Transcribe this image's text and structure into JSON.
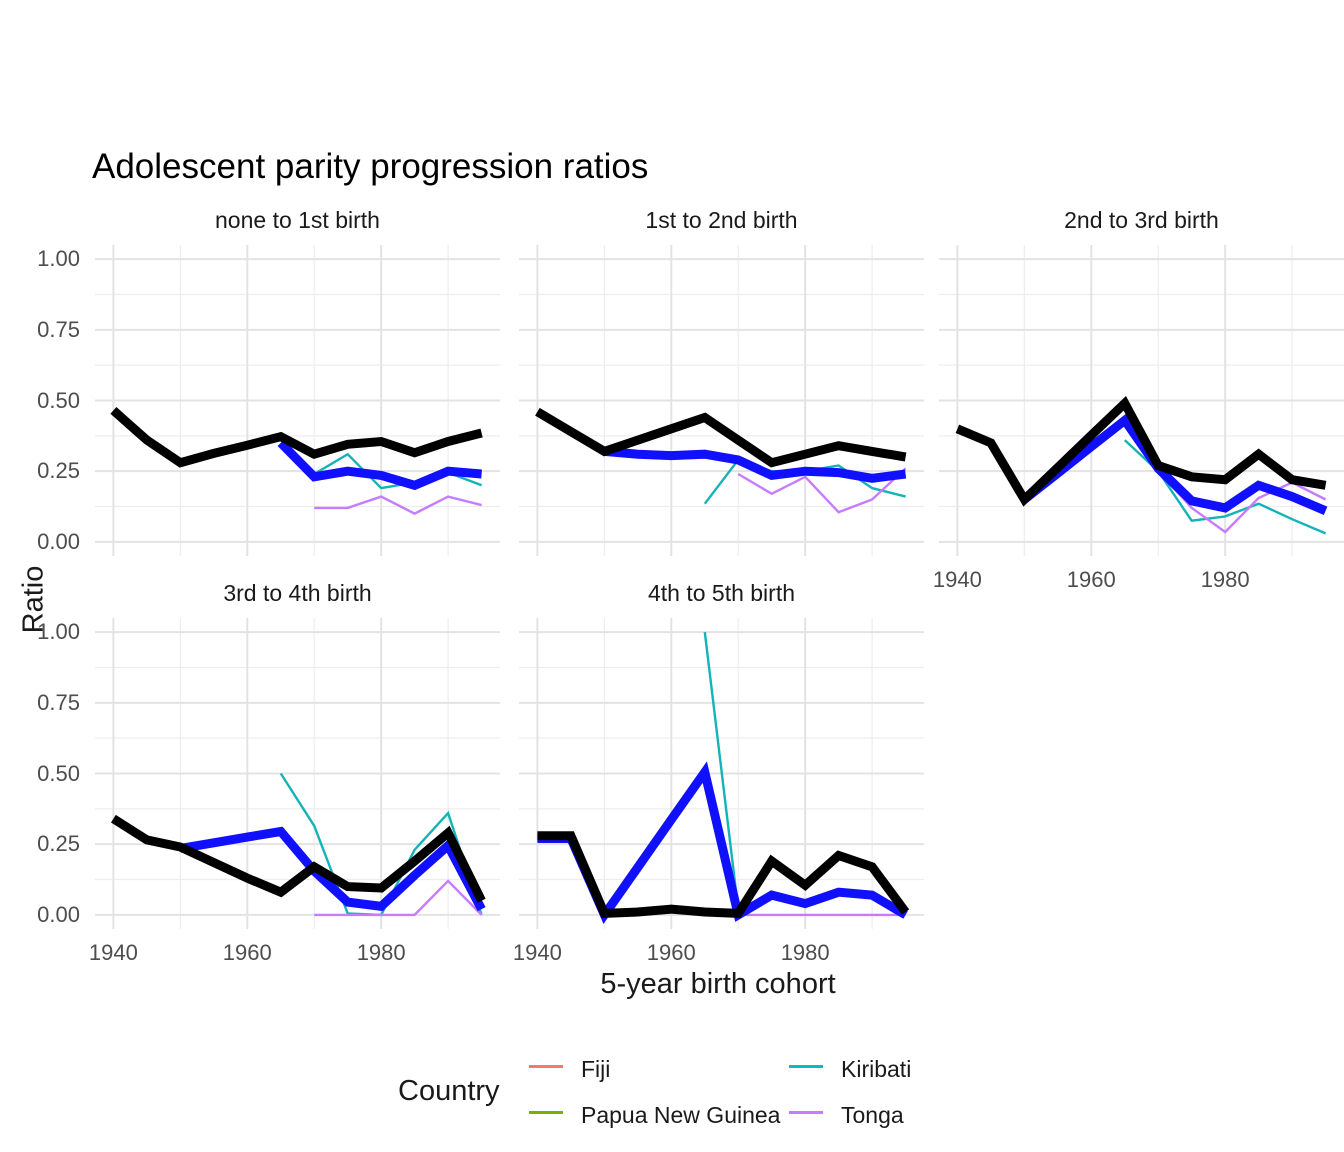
{
  "title": "Adolescent parity progression ratios",
  "ylabel": "Ratio",
  "xlabel": "5-year birth cohort",
  "legend": {
    "title": "Country",
    "items": [
      {
        "label": "Fiji",
        "color": "#F8766D"
      },
      {
        "label": "Papua New Guinea",
        "color": "#7CAE00"
      },
      {
        "label": "Kiribati",
        "color": "#00BFC4"
      },
      {
        "label": "Tonga",
        "color": "#C77CFF"
      }
    ]
  },
  "axes": {
    "y_tick_labels": [
      "1.00",
      "0.75",
      "0.50",
      "0.25",
      "0.00"
    ],
    "y_tick_values": [
      1.0,
      0.75,
      0.5,
      0.25,
      0.0
    ],
    "y_minor_values": [
      0.875,
      0.625,
      0.375,
      0.125
    ],
    "x_tick_labels": [
      "1940",
      "1960",
      "1980"
    ],
    "x_tick_values": [
      1940,
      1960,
      1980
    ],
    "x_minor_values": [
      1950,
      1970,
      1990
    ],
    "x_range": [
      1937.25,
      1997.75
    ],
    "y_range": [
      -0.05,
      1.05
    ],
    "grid_major_color": "#e3e3e3",
    "grid_minor_color": "#ededed"
  },
  "chart_data": {
    "type": "line",
    "x_unit": "5-year birth cohort (year)",
    "y_unit": "parity progression ratio",
    "grid": "on",
    "legend_position": "bottom",
    "facets": [
      {
        "label": "none to 1st birth",
        "series": [
          {
            "name": "Kiribati",
            "color": "#14B3B8",
            "width": 2.4,
            "points": [
              [
                1965,
                0.35
              ],
              [
                1970,
                0.24
              ],
              [
                1975,
                0.31
              ],
              [
                1980,
                0.19
              ],
              [
                1985,
                0.21
              ],
              [
                1990,
                0.245
              ],
              [
                1995,
                0.2
              ]
            ]
          },
          {
            "name": "Tonga",
            "color": "#C77CFF",
            "width": 2.4,
            "points": [
              [
                1970,
                0.12
              ],
              [
                1975,
                0.12
              ],
              [
                1980,
                0.16
              ],
              [
                1985,
                0.1
              ],
              [
                1990,
                0.16
              ],
              [
                1995,
                0.13
              ]
            ]
          },
          {
            "name": "blue thick (unlabeled)",
            "color": "#1010FF",
            "width": 9,
            "points": [
              [
                1965,
                0.35
              ],
              [
                1970,
                0.23
              ],
              [
                1975,
                0.25
              ],
              [
                1980,
                0.235
              ],
              [
                1985,
                0.2
              ],
              [
                1990,
                0.25
              ],
              [
                1995,
                0.24
              ]
            ]
          },
          {
            "name": "black thick (unlabeled)",
            "color": "#000000",
            "width": 9,
            "points": [
              [
                1940,
                0.465
              ],
              [
                1945,
                0.36
              ],
              [
                1950,
                0.28
              ],
              [
                1955,
                0.313
              ],
              [
                1960,
                0.342
              ],
              [
                1965,
                0.372
              ],
              [
                1970,
                0.31
              ],
              [
                1975,
                0.345
              ],
              [
                1980,
                0.355
              ],
              [
                1985,
                0.315
              ],
              [
                1990,
                0.355
              ],
              [
                1995,
                0.385
              ]
            ]
          }
        ]
      },
      {
        "label": "1st to 2nd birth",
        "series": [
          {
            "name": "Kiribati",
            "color": "#14B3B8",
            "width": 2.4,
            "points": [
              [
                1965,
                0.135
              ],
              [
                1970,
                0.29
              ],
              [
                1975,
                0.25
              ],
              [
                1980,
                0.25
              ],
              [
                1985,
                0.27
              ],
              [
                1990,
                0.19
              ],
              [
                1995,
                0.16
              ]
            ]
          },
          {
            "name": "Tonga",
            "color": "#C77CFF",
            "width": 2.4,
            "points": [
              [
                1970,
                0.24
              ],
              [
                1975,
                0.17
              ],
              [
                1980,
                0.23
              ],
              [
                1985,
                0.105
              ],
              [
                1990,
                0.15
              ],
              [
                1995,
                0.26
              ]
            ]
          },
          {
            "name": "blue thick (unlabeled)",
            "color": "#1010FF",
            "width": 9,
            "points": [
              [
                1950,
                0.32
              ],
              [
                1955,
                0.31
              ],
              [
                1960,
                0.305
              ],
              [
                1965,
                0.31
              ],
              [
                1970,
                0.29
              ],
              [
                1975,
                0.235
              ],
              [
                1980,
                0.25
              ],
              [
                1985,
                0.245
              ],
              [
                1990,
                0.225
              ],
              [
                1995,
                0.24
              ]
            ]
          },
          {
            "name": "black thick (unlabeled)",
            "color": "#000000",
            "width": 9,
            "points": [
              [
                1940,
                0.46
              ],
              [
                1945,
                0.39
              ],
              [
                1950,
                0.32
              ],
              [
                1955,
                0.36
              ],
              [
                1960,
                0.4
              ],
              [
                1965,
                0.44
              ],
              [
                1970,
                0.36
              ],
              [
                1975,
                0.28
              ],
              [
                1980,
                0.31
              ],
              [
                1985,
                0.34
              ],
              [
                1990,
                0.32
              ],
              [
                1995,
                0.3
              ]
            ]
          }
        ]
      },
      {
        "label": "2nd to 3rd birth",
        "series": [
          {
            "name": "Kiribati",
            "color": "#14B3B8",
            "width": 2.4,
            "points": [
              [
                1965,
                0.36
              ],
              [
                1970,
                0.25
              ],
              [
                1975,
                0.075
              ],
              [
                1980,
                0.09
              ],
              [
                1985,
                0.135
              ],
              [
                1990,
                0.08
              ],
              [
                1995,
                0.03
              ]
            ]
          },
          {
            "name": "Tonga",
            "color": "#C77CFF",
            "width": 2.4,
            "points": [
              [
                1970,
                0.25
              ],
              [
                1975,
                0.12
              ],
              [
                1980,
                0.035
              ],
              [
                1985,
                0.155
              ],
              [
                1990,
                0.21
              ],
              [
                1995,
                0.15
              ]
            ]
          },
          {
            "name": "blue thick (unlabeled)",
            "color": "#1010FF",
            "width": 9,
            "points": [
              [
                1950,
                0.15
              ],
              [
                1955,
                0.243
              ],
              [
                1960,
                0.337
              ],
              [
                1965,
                0.43
              ],
              [
                1970,
                0.26
              ],
              [
                1975,
                0.145
              ],
              [
                1980,
                0.12
              ],
              [
                1985,
                0.2
              ],
              [
                1990,
                0.16
              ],
              [
                1995,
                0.11
              ]
            ]
          },
          {
            "name": "black thick (unlabeled)",
            "color": "#000000",
            "width": 9,
            "points": [
              [
                1940,
                0.4
              ],
              [
                1945,
                0.35
              ],
              [
                1950,
                0.15
              ],
              [
                1955,
                0.263
              ],
              [
                1960,
                0.377
              ],
              [
                1965,
                0.49
              ],
              [
                1970,
                0.27
              ],
              [
                1975,
                0.23
              ],
              [
                1980,
                0.22
              ],
              [
                1985,
                0.31
              ],
              [
                1990,
                0.22
              ],
              [
                1995,
                0.2
              ]
            ]
          }
        ]
      },
      {
        "label": "3rd to 4th birth",
        "series": [
          {
            "name": "Kiribati",
            "color": "#14B3B8",
            "width": 2.4,
            "points": [
              [
                1965,
                0.5
              ],
              [
                1970,
                0.315
              ],
              [
                1975,
                0.005
              ],
              [
                1980,
                0
              ],
              [
                1985,
                0.23
              ],
              [
                1990,
                0.36
              ],
              [
                1995,
                0
              ]
            ]
          },
          {
            "name": "Tonga",
            "color": "#C77CFF",
            "width": 2.4,
            "points": [
              [
                1970,
                0
              ],
              [
                1975,
                0
              ],
              [
                1980,
                0
              ],
              [
                1985,
                0
              ],
              [
                1990,
                0.12
              ],
              [
                1995,
                0
              ]
            ]
          },
          {
            "name": "blue thick (unlabeled)",
            "color": "#1010FF",
            "width": 9,
            "points": [
              [
                1950,
                0.235
              ],
              [
                1955,
                0.255
              ],
              [
                1960,
                0.275
              ],
              [
                1965,
                0.295
              ],
              [
                1970,
                0.155
              ],
              [
                1975,
                0.045
              ],
              [
                1980,
                0.03
              ],
              [
                1985,
                0.14
              ],
              [
                1990,
                0.245
              ],
              [
                1995,
                0.02
              ]
            ]
          },
          {
            "name": "black thick (unlabeled)",
            "color": "#000000",
            "width": 9,
            "points": [
              [
                1940,
                0.34
              ],
              [
                1945,
                0.265
              ],
              [
                1950,
                0.24
              ],
              [
                1955,
                0.185
              ],
              [
                1960,
                0.13
              ],
              [
                1965,
                0.08
              ],
              [
                1970,
                0.17
              ],
              [
                1975,
                0.1
              ],
              [
                1980,
                0.095
              ],
              [
                1985,
                0.19
              ],
              [
                1990,
                0.29
              ],
              [
                1995,
                0.05
              ]
            ]
          }
        ]
      },
      {
        "label": "4th to 5th birth",
        "series": [
          {
            "name": "Kiribati",
            "color": "#14B3B8",
            "width": 2.4,
            "points": [
              [
                1965,
                1.0
              ],
              [
                1970,
                0.02
              ]
            ]
          },
          {
            "name": "Tonga",
            "color": "#C77CFF",
            "width": 2.4,
            "points": [
              [
                1970,
                0
              ],
              [
                1975,
                0
              ],
              [
                1980,
                0
              ],
              [
                1985,
                0
              ],
              [
                1990,
                0
              ],
              [
                1995,
                0
              ]
            ]
          },
          {
            "name": "blue thick (unlabeled)",
            "color": "#1010FF",
            "width": 9,
            "points": [
              [
                1940,
                0.27
              ],
              [
                1945,
                0.27
              ],
              [
                1950,
                0
              ],
              [
                1955,
                0.168
              ],
              [
                1960,
                0.337
              ],
              [
                1965,
                0.505
              ],
              [
                1970,
                0
              ],
              [
                1975,
                0.07
              ],
              [
                1980,
                0.04
              ],
              [
                1985,
                0.08
              ],
              [
                1990,
                0.07
              ],
              [
                1995,
                0
              ]
            ]
          },
          {
            "name": "black thick (unlabeled)",
            "color": "#000000",
            "width": 9,
            "points": [
              [
                1940,
                0.28
              ],
              [
                1945,
                0.28
              ],
              [
                1950,
                0.005
              ],
              [
                1955,
                0.01
              ],
              [
                1960,
                0.02
              ],
              [
                1965,
                0.01
              ],
              [
                1970,
                0.005
              ],
              [
                1975,
                0.19
              ],
              [
                1980,
                0.105
              ],
              [
                1985,
                0.21
              ],
              [
                1990,
                0.17
              ],
              [
                1995,
                0.01
              ]
            ]
          }
        ]
      }
    ]
  }
}
